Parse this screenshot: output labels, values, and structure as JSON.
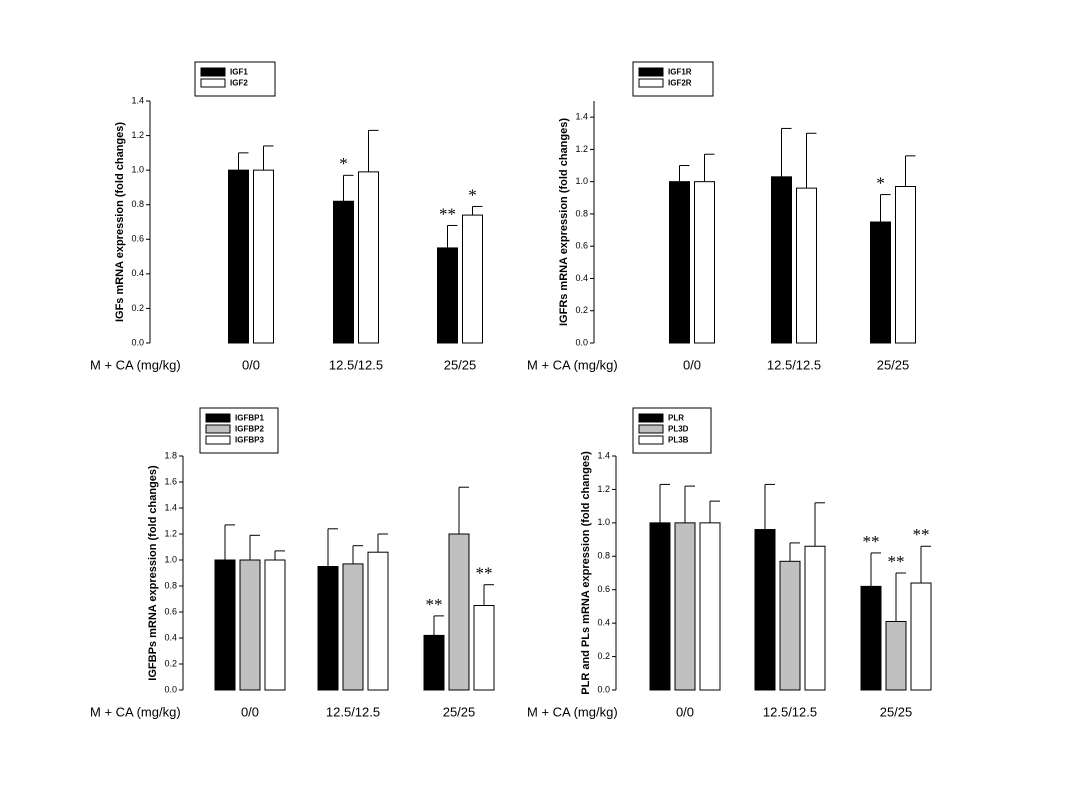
{
  "chart_data": [
    {
      "type": "bar",
      "ylabel": "IGFs mRNA expression (fold changes)",
      "xlabel": "M + CA (mg/kg)",
      "categories": [
        "0/0",
        "12.5/12.5",
        "25/25"
      ],
      "ylim": [
        0,
        1.4
      ],
      "yticks": [
        {
          "value": 0,
          "label": "0.0"
        },
        0.2,
        0.4,
        0.6,
        0.8,
        {
          "value": 1,
          "label": "1.0"
        },
        1.2,
        1.4
      ],
      "series": [
        {
          "name": "IGF1",
          "color": "#000000",
          "values": [
            1.0,
            0.82,
            0.55
          ],
          "errors": [
            0.1,
            0.15,
            0.13
          ],
          "significance": [
            null,
            "*",
            "**"
          ]
        },
        {
          "name": "IGF2",
          "color": "#ffffff",
          "values": [
            1.0,
            0.99,
            0.74
          ],
          "errors": [
            0.14,
            0.24,
            0.05
          ],
          "significance": [
            null,
            null,
            "*"
          ]
        }
      ]
    },
    {
      "type": "bar",
      "ylabel": "IGFRs mRNA expression (fold changes)",
      "xlabel": "M + CA (mg/kg)",
      "categories": [
        "0/0",
        "12.5/12.5",
        "25/25"
      ],
      "ylim": [
        0,
        1.5
      ],
      "yticks": [
        {
          "value": 0,
          "label": "0.0"
        },
        0.2,
        0.4,
        0.6,
        0.8,
        {
          "value": 1,
          "label": "1.0"
        },
        1.2,
        1.4
      ],
      "series": [
        {
          "name": "IGF1R",
          "color": "#000000",
          "values": [
            1.0,
            1.03,
            0.75
          ],
          "errors": [
            0.1,
            0.3,
            0.17
          ],
          "significance": [
            null,
            null,
            "*"
          ]
        },
        {
          "name": "IGF2R",
          "color": "#ffffff",
          "values": [
            1.0,
            0.96,
            0.97
          ],
          "errors": [
            0.17,
            0.34,
            0.19
          ],
          "significance": [
            null,
            null,
            null
          ]
        }
      ]
    },
    {
      "type": "bar",
      "ylabel": "IGFBPs mRNA expression (fold changes)",
      "xlabel": "M + CA (mg/kg)",
      "categories": [
        "0/0",
        "12.5/12.5",
        "25/25"
      ],
      "ylim": [
        0,
        1.8
      ],
      "yticks": [
        {
          "value": 0,
          "label": "0.0"
        },
        0.2,
        0.4,
        0.6,
        0.8,
        {
          "value": 1,
          "label": "1.0"
        },
        1.2,
        1.4,
        1.6,
        1.8
      ],
      "series": [
        {
          "name": "IGFBP1",
          "color": "#000000",
          "values": [
            1.0,
            0.95,
            0.42
          ],
          "errors": [
            0.27,
            0.29,
            0.15
          ],
          "significance": [
            null,
            null,
            "**"
          ]
        },
        {
          "name": "IGFBP2",
          "color": "#c0c0c0",
          "values": [
            1.0,
            0.97,
            1.2
          ],
          "errors": [
            0.19,
            0.14,
            0.36
          ],
          "significance": [
            null,
            null,
            null
          ]
        },
        {
          "name": "IGFBP3",
          "color": "#ffffff",
          "values": [
            1.0,
            1.06,
            0.65
          ],
          "errors": [
            0.07,
            0.14,
            0.16
          ],
          "significance": [
            null,
            null,
            "**"
          ]
        }
      ]
    },
    {
      "type": "bar",
      "ylabel": "PLR and PLs mRNA expression (fold changes)",
      "xlabel": "M + CA (mg/kg)",
      "categories": [
        "0/0",
        "12.5/12.5",
        "25/25"
      ],
      "ylim": [
        0,
        1.4
      ],
      "yticks": [
        {
          "value": 0,
          "label": "0.0"
        },
        0.2,
        0.4,
        0.6,
        0.8,
        {
          "value": 1,
          "label": "1.0"
        },
        1.2,
        1.4
      ],
      "series": [
        {
          "name": "PLR",
          "color": "#000000",
          "values": [
            1.0,
            0.96,
            0.62
          ],
          "errors": [
            0.23,
            0.27,
            0.2
          ],
          "significance": [
            null,
            null,
            "**"
          ]
        },
        {
          "name": "PL3D",
          "color": "#c0c0c0",
          "values": [
            1.0,
            0.77,
            0.41
          ],
          "errors": [
            0.22,
            0.11,
            0.29
          ],
          "significance": [
            null,
            null,
            "**"
          ]
        },
        {
          "name": "PL3B",
          "color": "#ffffff",
          "values": [
            1.0,
            0.86,
            0.64
          ],
          "errors": [
            0.13,
            0.26,
            0.22
          ],
          "significance": [
            null,
            null,
            "**"
          ]
        }
      ]
    }
  ]
}
